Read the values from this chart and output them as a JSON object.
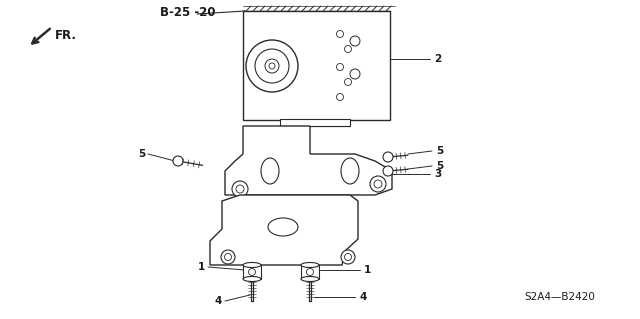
{
  "bg_color": "#ffffff",
  "line_color": "#2a2a2a",
  "label_color": "#1a1a1a",
  "part_number": "S2A4—B2420",
  "ref_label": "B-25 -20",
  "direction_label": "FR.",
  "lw_main": 0.9,
  "lw_thin": 0.6,
  "lw_label": 0.7
}
